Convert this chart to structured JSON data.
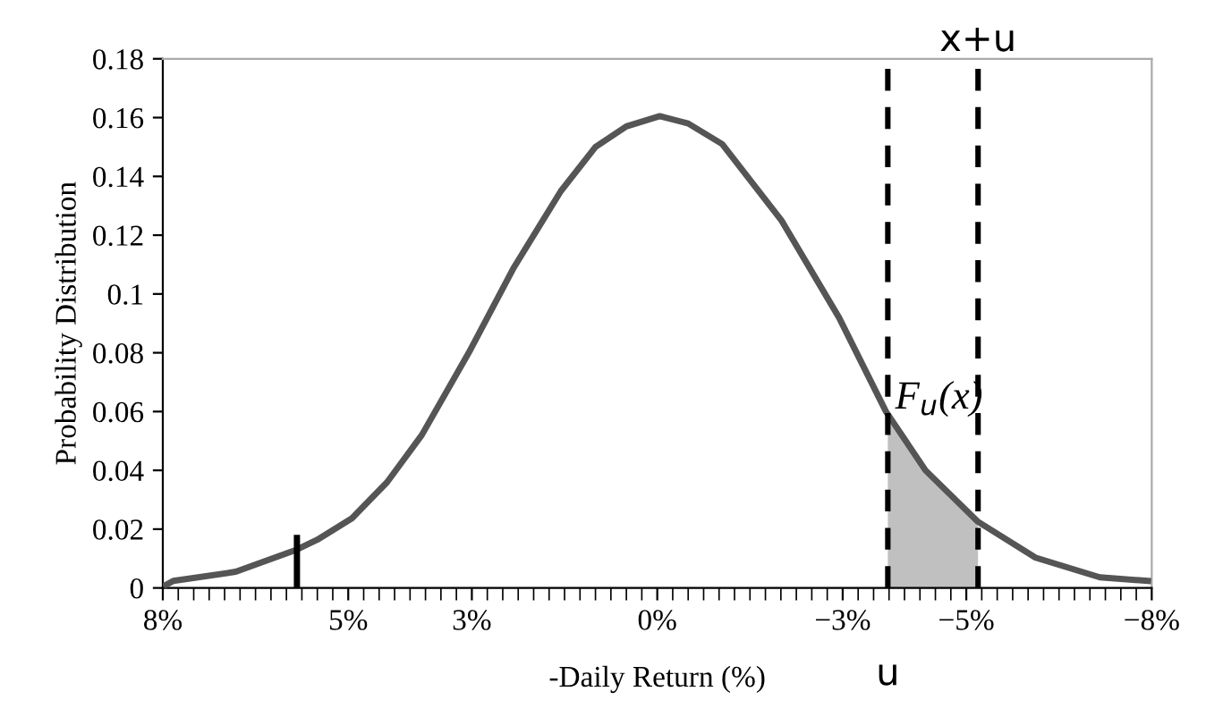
{
  "chart_data": {
    "type": "line",
    "ylabel": "Probability Distribution",
    "xlabel": "-Daily Return (%)",
    "xlim": [
      8,
      -8
    ],
    "ylim": [
      0,
      0.18
    ],
    "xticks": [
      {
        "value": 8,
        "label": "8%"
      },
      {
        "value": 5,
        "label": "5%"
      },
      {
        "value": 3,
        "label": "3%"
      },
      {
        "value": 0,
        "label": "0%"
      },
      {
        "value": -3,
        "label": "−3%"
      },
      {
        "value": -5,
        "label": "−5%"
      },
      {
        "value": -8,
        "label": "−8%"
      }
    ],
    "yticks": [
      0,
      0.02,
      0.04,
      0.06,
      0.08,
      0.1,
      0.12,
      0.14,
      0.16,
      0.18
    ],
    "grid": false,
    "legend": false,
    "marker": "none",
    "line_style": "solid",
    "series": [
      {
        "type": "area",
        "color": "#c0c0c0",
        "x": [
          -3.73,
          -4.0,
          -4.34,
          -4.8,
          -5.19
        ],
        "values": [
          0.058,
          0.049,
          0.04,
          0.03,
          0.0225
        ]
      },
      {
        "color": "#555555",
        "x": [
          7.95,
          7.83,
          6.82,
          5.86,
          5.5,
          4.94,
          4.37,
          3.81,
          3.05,
          2.32,
          1.56,
          1.0,
          0.5,
          -0.04,
          -0.5,
          -1.05,
          -2.01,
          -2.94,
          -3.7,
          -4.34,
          -5.19,
          -6.12,
          -7.16,
          -7.94
        ],
        "values": [
          0.001,
          0.0024,
          0.0055,
          0.0128,
          0.0164,
          0.0237,
          0.036,
          0.052,
          0.08,
          0.109,
          0.135,
          0.15,
          0.157,
          0.1605,
          0.158,
          0.151,
          0.125,
          0.092,
          0.06,
          0.04,
          0.0225,
          0.0103,
          0.0036,
          0.0024
        ]
      },
      {
        "type": "line",
        "color": "#000000",
        "x": [
          5.83,
          5.83
        ],
        "values": [
          0,
          0.017
        ]
      }
    ],
    "ref_lines": [
      {
        "axis": "x",
        "value": -3.73,
        "label": "u",
        "color": "#000000",
        "line_style": "dashed"
      },
      {
        "axis": "x",
        "value": -5.19,
        "label": "x+u",
        "color": "#000000",
        "line_style": "dashed"
      }
    ],
    "annotations": [
      {
        "text": "F$_{u}$(x)",
        "x": -3.85,
        "y": 0.058
      }
    ]
  }
}
